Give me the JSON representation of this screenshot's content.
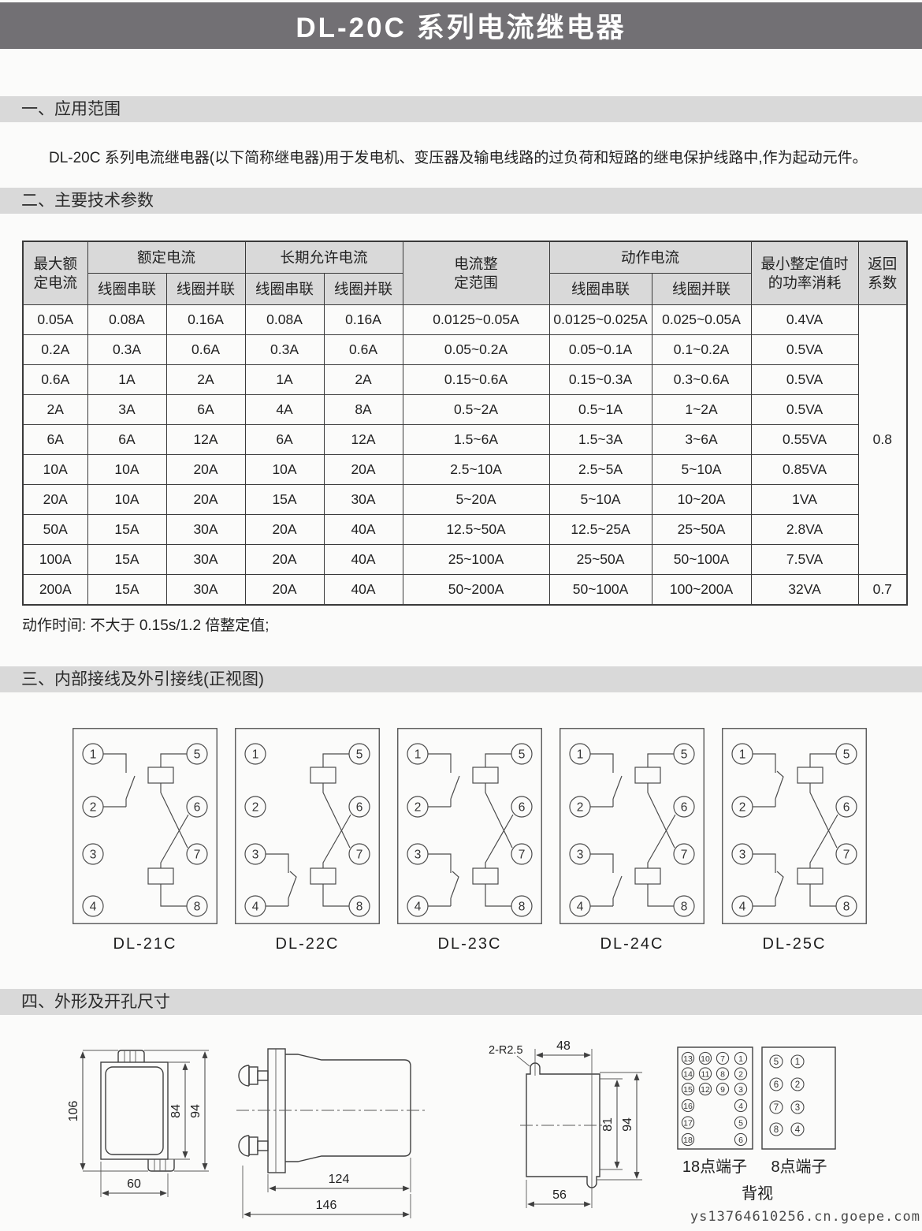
{
  "title": "DL-20C 系列电流继电器",
  "sections": {
    "s1": {
      "heading": "一、应用范围",
      "paragraph": "DL-20C 系列电流继电器(以下简称继电器)用于发电机、变压器及输电线路的过负荷和短路的继电保护线路中,作为起动元件。"
    },
    "s2": {
      "heading": "二、主要技术参数",
      "note": "动作时间: 不大于 0.15s/1.2 倍整定值;"
    },
    "s3": {
      "heading": "三、内部接线及外引接线(正视图)"
    },
    "s4": {
      "heading": "四、外形及开孔尺寸"
    }
  },
  "table": {
    "headers": {
      "col_max": "最大额\n定电流",
      "group_rated": "额定电流",
      "group_longterm": "长期允许电流",
      "col_range": "电流整\n定范围",
      "group_action": "动作电流",
      "col_power": "最小整定值时\n的功率消耗",
      "col_return": "返回\n系数",
      "sub_series": "线圈串联",
      "sub_parallel": "线圈并联"
    },
    "rows": [
      [
        "0.05A",
        "0.08A",
        "0.16A",
        "0.08A",
        "0.16A",
        "0.0125~0.05A",
        "0.0125~0.025A",
        "0.025~0.05A",
        "0.4VA"
      ],
      [
        "0.2A",
        "0.3A",
        "0.6A",
        "0.3A",
        "0.6A",
        "0.05~0.2A",
        "0.05~0.1A",
        "0.1~0.2A",
        "0.5VA"
      ],
      [
        "0.6A",
        "1A",
        "2A",
        "1A",
        "2A",
        "0.15~0.6A",
        "0.15~0.3A",
        "0.3~0.6A",
        "0.5VA"
      ],
      [
        "2A",
        "3A",
        "6A",
        "4A",
        "8A",
        "0.5~2A",
        "0.5~1A",
        "1~2A",
        "0.5VA"
      ],
      [
        "6A",
        "6A",
        "12A",
        "6A",
        "12A",
        "1.5~6A",
        "1.5~3A",
        "3~6A",
        "0.55VA"
      ],
      [
        "10A",
        "10A",
        "20A",
        "10A",
        "20A",
        "2.5~10A",
        "2.5~5A",
        "5~10A",
        "0.85VA"
      ],
      [
        "20A",
        "10A",
        "20A",
        "15A",
        "30A",
        "5~20A",
        "5~10A",
        "10~20A",
        "1VA"
      ],
      [
        "50A",
        "15A",
        "30A",
        "20A",
        "40A",
        "12.5~50A",
        "12.5~25A",
        "25~50A",
        "2.8VA"
      ],
      [
        "100A",
        "15A",
        "30A",
        "20A",
        "40A",
        "25~100A",
        "25~50A",
        "50~100A",
        "7.5VA"
      ],
      [
        "200A",
        "15A",
        "30A",
        "20A",
        "40A",
        "50~200A",
        "50~100A",
        "100~200A",
        "32VA"
      ]
    ],
    "return_coefficients": [
      "0.8",
      "0.7"
    ]
  },
  "wiring": {
    "terminal_numbers_left": [
      "1",
      "2",
      "3",
      "4"
    ],
    "terminal_numbers_right": [
      "5",
      "6",
      "7",
      "8"
    ],
    "models": [
      {
        "label": "DL-21C",
        "top_contact": "no",
        "bottom_contact": "none"
      },
      {
        "label": "DL-22C",
        "top_contact": "none",
        "bottom_contact": "nc"
      },
      {
        "label": "DL-23C",
        "top_contact": "no",
        "bottom_contact": "nc"
      },
      {
        "label": "DL-24C",
        "top_contact": "no",
        "bottom_contact": "no"
      },
      {
        "label": "DL-25C",
        "top_contact": "nc",
        "bottom_contact": "nc"
      }
    ]
  },
  "drawings": {
    "front": {
      "h_total": "106",
      "h_inner": "84",
      "h_outer": "94",
      "w_bottom": "60"
    },
    "side": {
      "len_body": "124",
      "len_total": "146"
    },
    "cutout": {
      "note": "2-R2.5",
      "w_top": "48",
      "h_inner": "81",
      "h_outer": "94",
      "w_bottom": "56"
    },
    "terminals18": {
      "label": "18点端子",
      "rows": [
        [
          "13",
          "10",
          "7",
          "1"
        ],
        [
          "14",
          "11",
          "8",
          "2"
        ],
        [
          "15",
          "12",
          "9",
          "3"
        ],
        [
          "16",
          "",
          "",
          "4"
        ],
        [
          "17",
          "",
          "",
          "5"
        ],
        [
          "18",
          "",
          "",
          "6"
        ]
      ]
    },
    "terminals8": {
      "label": "8点端子",
      "rows": [
        [
          "5",
          "1"
        ],
        [
          "6",
          "2"
        ],
        [
          "7",
          "3"
        ],
        [
          "8",
          "4"
        ]
      ]
    },
    "back_view_label": "背视"
  },
  "watermark": "ys13764610256.cn.goepe.com"
}
